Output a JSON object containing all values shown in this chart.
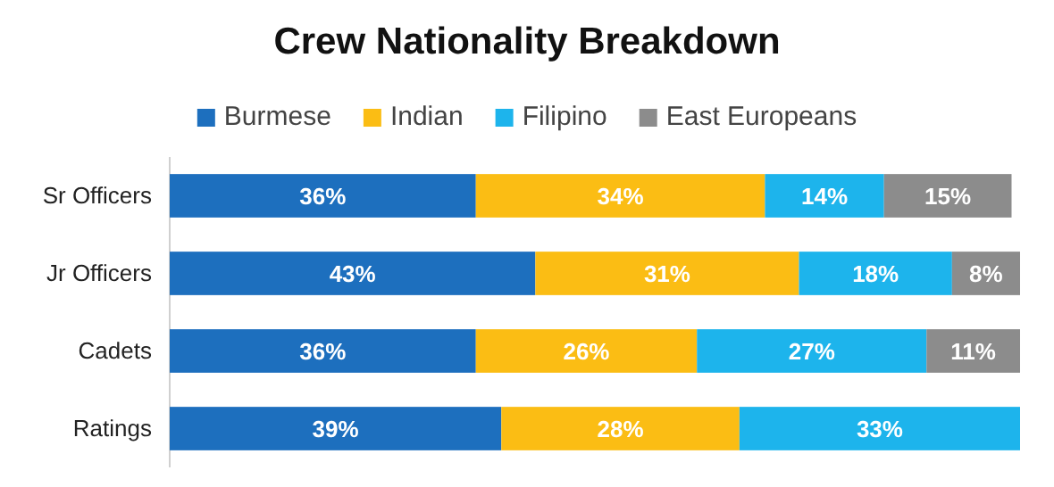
{
  "chart_data": {
    "type": "bar",
    "title": "Crew Nationality Breakdown",
    "orientation": "horizontal",
    "stacked": true,
    "categories": [
      "Sr Officers",
      "Jr Officers",
      "Cadets",
      "Ratings"
    ],
    "xlim": [
      0,
      100
    ],
    "tick_labels": "y",
    "legend": "top",
    "series": [
      {
        "name": "Burmese",
        "color": "#1d6fbe",
        "values": [
          36,
          43,
          36,
          39
        ],
        "value_labels": [
          "36%",
          "43%",
          "36%",
          "39%"
        ]
      },
      {
        "name": "Indian",
        "color": "#fbbd14",
        "values": [
          34,
          31,
          26,
          28
        ],
        "value_labels": [
          "34%",
          "31%",
          "26%",
          "28%"
        ]
      },
      {
        "name": "Filipino",
        "color": "#1db4ec",
        "values": [
          14,
          18,
          27,
          33
        ],
        "value_labels": [
          "14%",
          "18%",
          "27%",
          "33%"
        ]
      },
      {
        "name": "East Europeans",
        "color": "#8c8c8c",
        "values": [
          15,
          8,
          11,
          null
        ],
        "value_labels": [
          "15%",
          "8%",
          "11%",
          null
        ]
      }
    ]
  }
}
